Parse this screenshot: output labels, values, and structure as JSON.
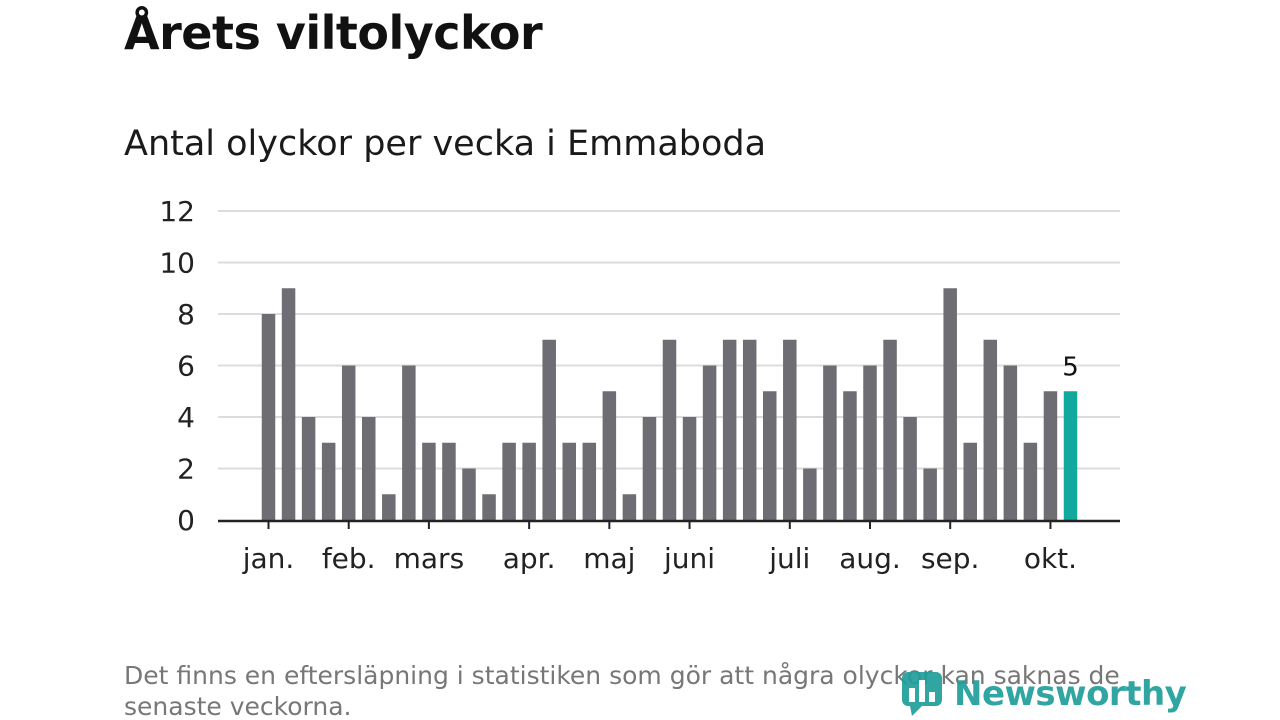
{
  "header": {
    "title": "Årets viltolyckor",
    "subtitle": "Antal olyckor per vecka i Emmaboda"
  },
  "footer": {
    "note": "Det finns en eftersläpning i statistiken som gör att några olyckor kan saknas de senaste veckorna.",
    "logo_text": "Newsworthy"
  },
  "colors": {
    "bar": "#6e6d73",
    "highlight": "#13a89e",
    "grid": "#dcdcdc",
    "axis": "#222222",
    "logo": "#1f9e9a"
  },
  "chart_data": {
    "type": "bar",
    "ylim": [
      0,
      12
    ],
    "y_ticks": [
      "0",
      "2",
      "4",
      "6",
      "8",
      "10",
      "12"
    ],
    "grid": true,
    "values": [
      8,
      9,
      4,
      3,
      6,
      4,
      1,
      6,
      3,
      3,
      2,
      1,
      3,
      3,
      7,
      3,
      3,
      5,
      1,
      4,
      7,
      4,
      6,
      7,
      7,
      5,
      7,
      2,
      6,
      5,
      6,
      7,
      4,
      2,
      9,
      3,
      7,
      6,
      3,
      5,
      5
    ],
    "highlight_index": 40,
    "highlight_label": "5",
    "month_labels": [
      {
        "label": "jan.",
        "week_index": 0
      },
      {
        "label": "feb.",
        "week_index": 4
      },
      {
        "label": "mars",
        "week_index": 8
      },
      {
        "label": "apr.",
        "week_index": 13
      },
      {
        "label": "maj",
        "week_index": 17
      },
      {
        "label": "juni",
        "week_index": 21
      },
      {
        "label": "juli",
        "week_index": 26
      },
      {
        "label": "aug.",
        "week_index": 30
      },
      {
        "label": "sep.",
        "week_index": 34
      },
      {
        "label": "okt.",
        "week_index": 39
      }
    ]
  }
}
